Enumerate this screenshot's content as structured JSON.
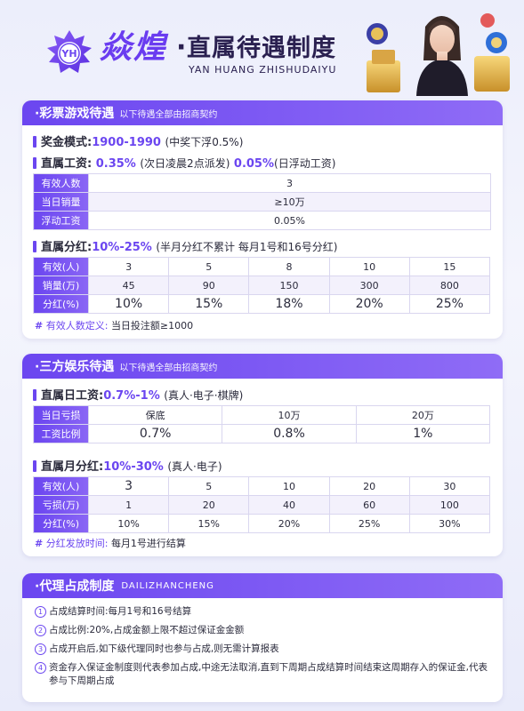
{
  "header": {
    "brand": "焱煌",
    "dot": "·",
    "title": "直属待遇制度",
    "subtitle": "YAN HUANG ZHISHUDAIYU",
    "logo_text": "YH"
  },
  "lottery": {
    "title": "·彩票游戏待遇",
    "subtitle": "以下待遇全部由招商契约",
    "bonus_label": "奖金模式:",
    "bonus_value": "1900-1990",
    "bonus_note_a": "(中奖下浮",
    "bonus_note_b": "0.5%",
    "bonus_note_c": ")",
    "wage_label": "直属工资:",
    "wage_value1": "0.35%",
    "wage_note1": "(次日凌晨2点派发)",
    "wage_value2": "0.05%",
    "wage_note2": "(日浮动工资)",
    "wage_table": [
      {
        "label": "有效人数",
        "value": "3"
      },
      {
        "label": "当日销量",
        "value": "≥10万"
      },
      {
        "label": "浮动工资",
        "value": "0.05%"
      }
    ],
    "div_label": "直属分红:",
    "div_value": "10%-25%",
    "div_note": "(半月分红不累计 每月1号和16号分红)",
    "div_table": {
      "rows": [
        {
          "label": "有效(人)",
          "values": [
            "3",
            "5",
            "8",
            "10",
            "15"
          ]
        },
        {
          "label": "销量(万)",
          "values": [
            "45",
            "90",
            "150",
            "300",
            "800"
          ]
        },
        {
          "label": "分红(%)",
          "values": [
            "10%",
            "15%",
            "18%",
            "20%",
            "25%"
          ]
        }
      ]
    },
    "note_hash": "#",
    "note_label": "有效人数定义:",
    "note_value": "当日投注额≥1000"
  },
  "third": {
    "title": "·三方娱乐待遇",
    "subtitle": "以下待遇全部由招商契约",
    "wage_label": "直属日工资:",
    "wage_value": "0.7%-1%",
    "wage_note": "(真人·电子·棋牌)",
    "wage_table": {
      "rows": [
        {
          "label": "当日亏损",
          "values": [
            "保底",
            "10万",
            "20万"
          ]
        },
        {
          "label": "工资比例",
          "values": [
            "0.7%",
            "0.8%",
            "1%"
          ]
        }
      ]
    },
    "div_label": "直属月分红:",
    "div_value": "10%-30%",
    "div_note": "(真人·电子)",
    "div_table": {
      "rows": [
        {
          "label": "有效(人)",
          "values": [
            "3",
            "5",
            "10",
            "20",
            "30"
          ]
        },
        {
          "label": "亏损(万)",
          "values": [
            "1",
            "20",
            "40",
            "60",
            "100"
          ]
        },
        {
          "label": "分红(%)",
          "values": [
            "10%",
            "15%",
            "20%",
            "25%",
            "30%"
          ]
        }
      ]
    },
    "note_hash": "#",
    "note_label": "分红发放时间:",
    "note_value": "每月1号进行结算"
  },
  "agency": {
    "title": "·代理占成制度",
    "subtitle": "DAILIZHANCHENG",
    "items": [
      {
        "num": "1",
        "text": "占成结算时间:每月1号和16号结算"
      },
      {
        "num": "2",
        "text": "占成比例:20%,占成金额上限不超过保证金金额"
      },
      {
        "num": "3",
        "text": "占成开启后,如下级代理同时也参与占成,则无需计算报表"
      },
      {
        "num": "4",
        "text": "资金存入保证金制度则代表参加占成,中途无法取消,直到下周期占成结算时间结束这周期存入的保证金,代表参与下周期占成"
      }
    ]
  },
  "colors": {
    "accent": "#6b46f0",
    "accent2": "#8f6cf6",
    "bg": "#eceefb"
  }
}
